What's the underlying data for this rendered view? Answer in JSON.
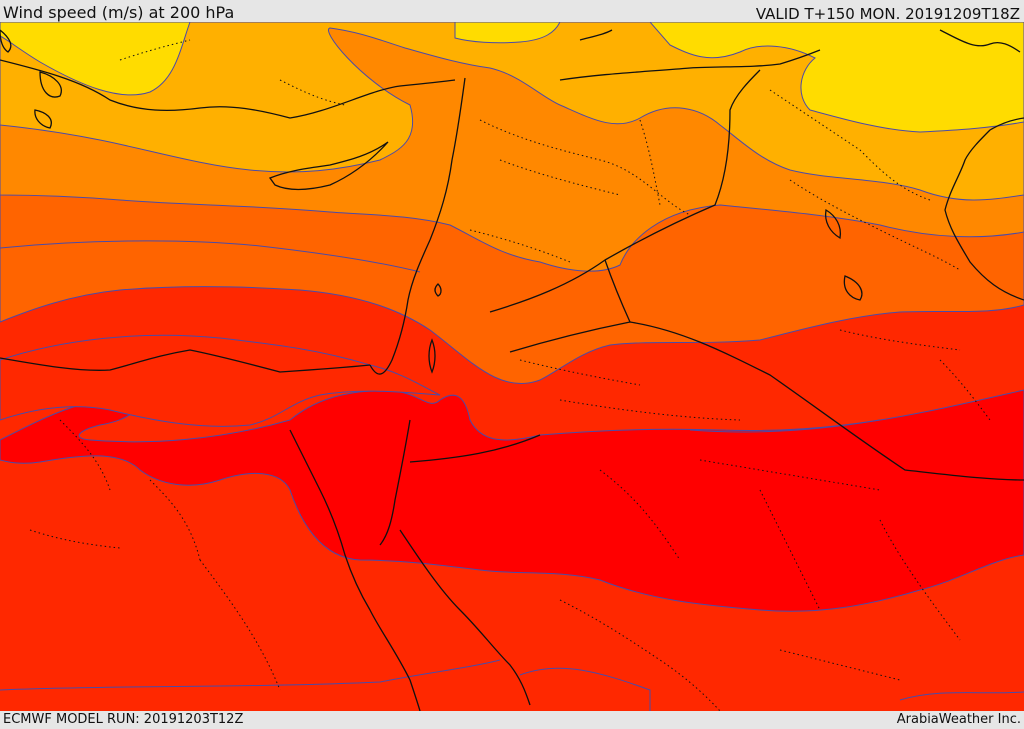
{
  "header": {
    "title": "Wind speed (m/s) at 200 hPa",
    "valid_time": "VALID T+150 MON. 20191209T18Z"
  },
  "map": {
    "field": "wind speed at 200 hPa",
    "bands": [
      {
        "name": "yellow",
        "color": "#ffdc00"
      },
      {
        "name": "light-orange",
        "color": "#ffb000"
      },
      {
        "name": "orange",
        "color": "#ff8800"
      },
      {
        "name": "deep-orange",
        "color": "#ff6400"
      },
      {
        "name": "red-orange",
        "color": "#ff2800"
      },
      {
        "name": "red",
        "color": "#ff0000"
      }
    ],
    "contour_color": "#4b4ba8",
    "coastline_color": "#111111"
  },
  "footer": {
    "model_run": "ECMWF MODEL RUN: 20191203T12Z",
    "credit": "ArabiaWeather Inc."
  }
}
